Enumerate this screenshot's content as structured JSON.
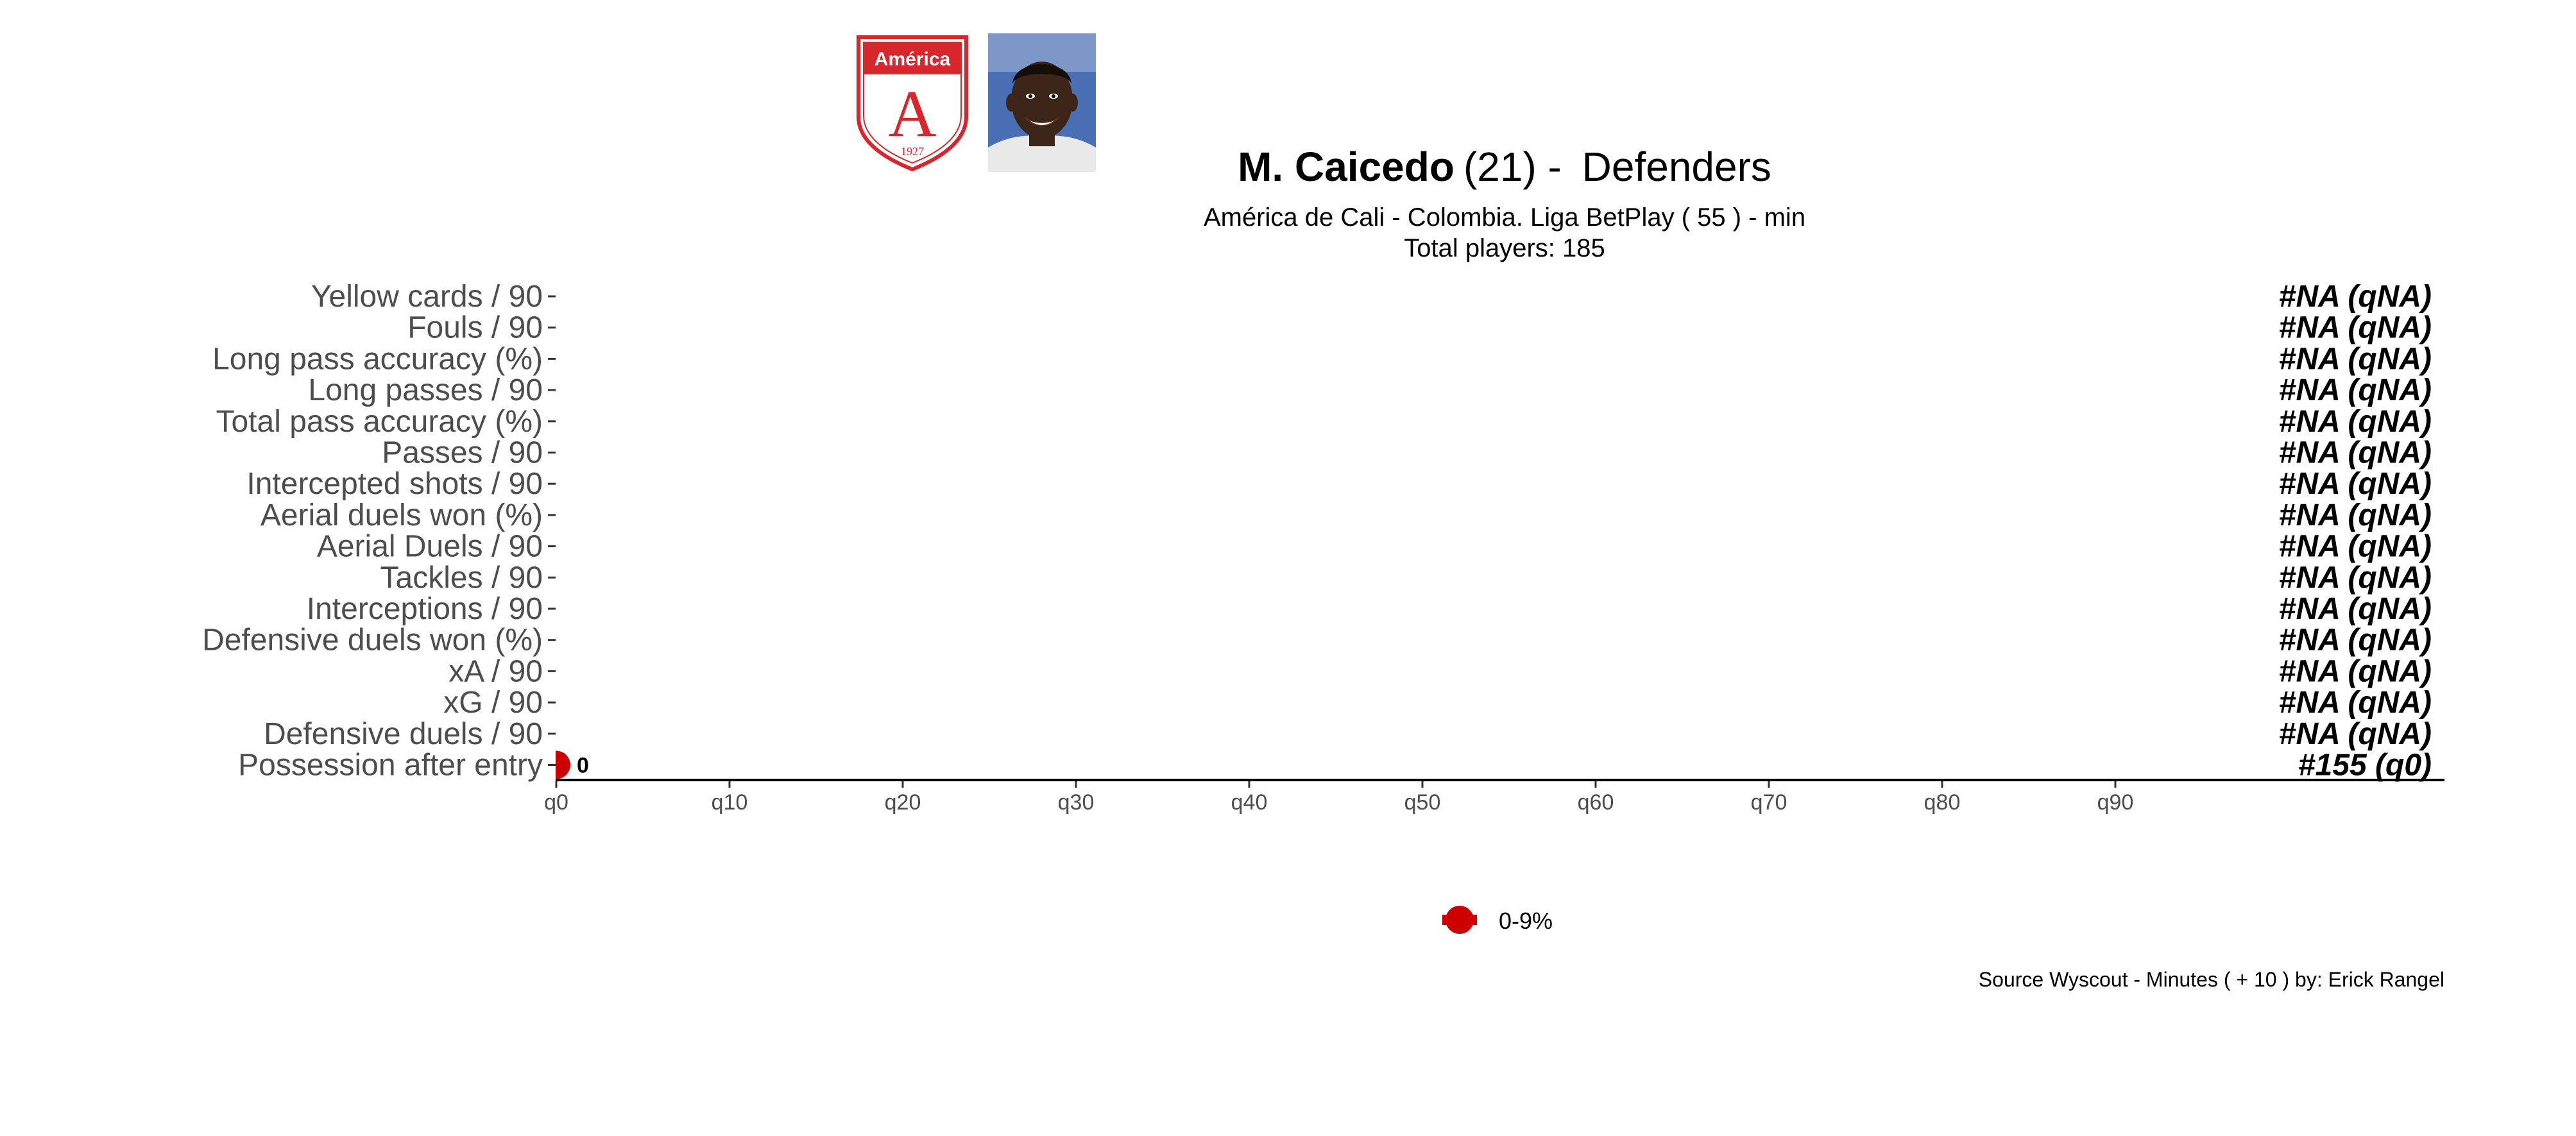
{
  "header": {
    "player_name": "M. Caicedo",
    "player_age": "(21)",
    "separator": " -  ",
    "position": "Defenders",
    "subtitle_line1": "América de Cali  -  Colombia. Liga BetPlay  ( 55 ) - min",
    "subtitle_line2": "Total players:  185"
  },
  "club_badge": {
    "club_name": "América",
    "letter": "A",
    "year": "1927",
    "color": "#d8262d"
  },
  "player_photo": {
    "background_color": "#4a6fb5",
    "skin_color": "#3b2418"
  },
  "chart_data": {
    "type": "scatter",
    "categories": [
      "Yellow cards / 90",
      "Fouls / 90",
      "Long pass accuracy (%)",
      "Long passes / 90",
      "Total pass accuracy (%)",
      "Passes / 90",
      "Intercepted shots / 90",
      "Aerial duels won (%)",
      "Aerial Duels / 90",
      "Tackles / 90",
      "Interceptions / 90",
      "Defensive duels won (%)",
      "xA / 90",
      "xG / 90",
      "Defensive duels / 90",
      "Possession after entry"
    ],
    "percentiles": [
      null,
      null,
      null,
      null,
      null,
      null,
      null,
      null,
      null,
      null,
      null,
      null,
      null,
      null,
      null,
      0
    ],
    "point_labels": [
      "",
      "",
      "",
      "",
      "",
      "",
      "",
      "",
      "",
      "",
      "",
      "",
      "",
      "",
      "",
      "0"
    ],
    "rank_labels": [
      "#NA (qNA)",
      "#NA (qNA)",
      "#NA (qNA)",
      "#NA (qNA)",
      "#NA (qNA)",
      "#NA (qNA)",
      "#NA (qNA)",
      "#NA (qNA)",
      "#NA (qNA)",
      "#NA (qNA)",
      "#NA (qNA)",
      "#NA (qNA)",
      "#NA (qNA)",
      "#NA (qNA)",
      "#NA (qNA)",
      "#155 (q0)"
    ],
    "x_ticks": [
      0,
      10,
      20,
      30,
      40,
      50,
      60,
      70,
      80,
      90
    ],
    "x_tick_labels": [
      "q0",
      "q10",
      "q20",
      "q30",
      "q40",
      "q50",
      "q60",
      "q70",
      "q80",
      "q90"
    ],
    "xlim": [
      0,
      109
    ],
    "grid": false,
    "legend": {
      "placement": "bottom",
      "entries": [
        {
          "label": "0-9%",
          "color": "#cc0000"
        }
      ]
    },
    "point_color": "#cc0000"
  },
  "footer": {
    "source": "Source Wyscout - Minutes ( + 10 ) by: Erick Rangel"
  }
}
